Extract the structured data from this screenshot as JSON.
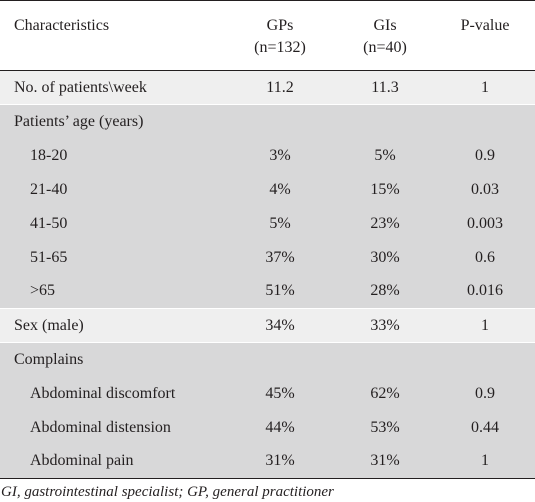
{
  "header": {
    "characteristics": "Characteristics",
    "gps": "GPs",
    "gps_n": "(n=132)",
    "gis": "GIs",
    "gis_n": "(n=40)",
    "pvalue": "P-value"
  },
  "rows": {
    "patients_week": {
      "label": "No. of patients\\week",
      "gps": "11.2",
      "gis": "11.3",
      "p": "1"
    },
    "age_header": {
      "label": "Patients’ age (years)"
    },
    "age_18_20": {
      "label": "18-20",
      "gps": "3%",
      "gis": "5%",
      "p": "0.9"
    },
    "age_21_40": {
      "label": "21-40",
      "gps": "4%",
      "gis": "15%",
      "p": "0.03"
    },
    "age_41_50": {
      "label": "41-50",
      "gps": "5%",
      "gis": "23%",
      "p": "0.003"
    },
    "age_51_65": {
      "label": "51-65",
      "gps": "37%",
      "gis": "30%",
      "p": "0.6"
    },
    "age_65_plus": {
      "label": ">65",
      "gps": "51%",
      "gis": "28%",
      "p": "0.016"
    },
    "sex_male": {
      "label": "Sex (male)",
      "gps": "34%",
      "gis": "33%",
      "p": "1"
    },
    "complains_header": {
      "label": "Complains"
    },
    "abd_discomfort": {
      "label": "Abdominal discomfort",
      "gps": "45%",
      "gis": "62%",
      "p": "0.9"
    },
    "abd_distension": {
      "label": "Abdominal distension",
      "gps": "44%",
      "gis": "53%",
      "p": "0.44"
    },
    "abd_pain": {
      "label": "Abdominal pain",
      "gps": "31%",
      "gis": "31%",
      "p": "1"
    }
  },
  "footnote": "GI, gastrointestinal specialist; GP, general practitioner",
  "colors": {
    "shade_light": "#efefef",
    "shade_dark": "#d8d8d9",
    "text": "#231f20"
  }
}
